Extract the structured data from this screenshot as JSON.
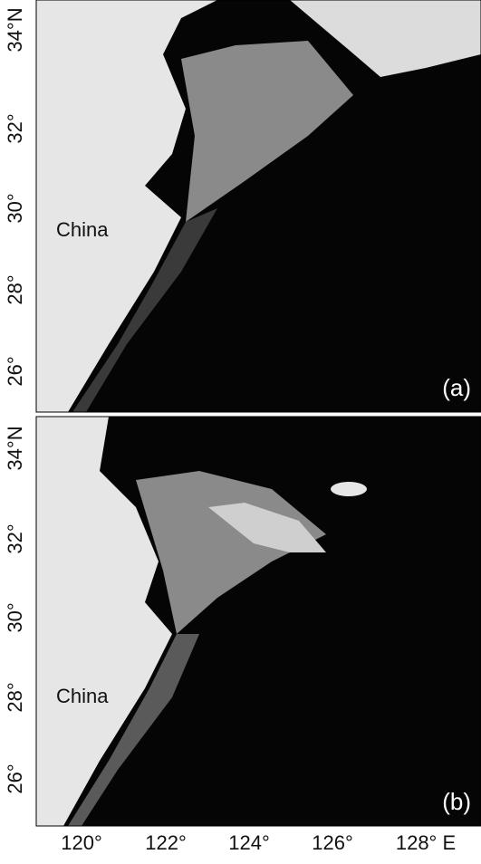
{
  "panels": [
    {
      "label": "(a)",
      "country": "China",
      "yticks": [
        "34°N",
        "32°",
        "30°",
        "28°",
        "26°"
      ]
    },
    {
      "label": "(b)",
      "country": "China",
      "yticks": [
        "34°N",
        "32°",
        "30°",
        "28°",
        "26°"
      ]
    }
  ],
  "xticks": [
    "120°",
    "122°",
    "124°",
    "126°",
    "128° E"
  ]
}
